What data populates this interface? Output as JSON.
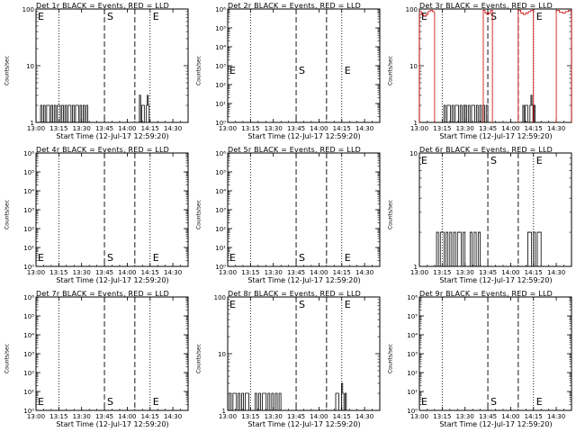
{
  "chart_data": [
    {
      "type": "line",
      "title": "Det 1r BLACK = Events, RED = LLD",
      "xlabel": "Start Time (12-Jul-17 12:59:20)",
      "ylabel": "Counts/sec",
      "scale": "log",
      "xlim": [
        "13:00",
        "14:40"
      ],
      "ylim": [
        1,
        100
      ],
      "x_ticks": [
        "13:00",
        "13:15",
        "13:30",
        "13:45",
        "14:00",
        "14:15",
        "14:30"
      ],
      "y_ticks": [
        "1",
        "10",
        "100"
      ],
      "marker_lines": [
        {
          "time": "13:15",
          "style": "dotted"
        },
        {
          "time": "13:45",
          "style": "dashed",
          "label": "S"
        },
        {
          "time": "14:05",
          "style": "dashed"
        },
        {
          "time": "14:15",
          "style": "dotted",
          "label": "E"
        }
      ],
      "extra_labels": [
        {
          "text": "E",
          "pos": "left"
        }
      ],
      "label_row": "top",
      "series": [
        {
          "color": "#000000",
          "segments": [
            {
              "x0": "13:02",
              "x1": "13:18",
              "values": [
                1,
                2,
                1,
                2,
                1,
                2,
                2,
                1,
                2,
                1,
                2,
                1,
                2,
                2,
                1,
                2
              ]
            },
            {
              "x0": "13:19",
              "x1": "13:35",
              "values": [
                2,
                1,
                2,
                2,
                1,
                2,
                1,
                2,
                2,
                1,
                2,
                1,
                2,
                1,
                2,
                1
              ]
            },
            {
              "x0": "14:08",
              "x1": "14:12",
              "values": [
                3,
                1,
                2,
                2,
                1
              ]
            },
            {
              "x0": "14:12",
              "x1": "14:15",
              "values": [
                1,
                2,
                3,
                2,
                1
              ]
            }
          ]
        }
      ]
    },
    {
      "type": "line",
      "title": "Det 2r BLACK = Events, RED = LLD",
      "xlabel": "Start Time (12-Jul-17 12:59:20)",
      "ylabel": "Counts/sec",
      "scale": "log",
      "xlim": [
        "13:00",
        "14:40"
      ],
      "ylim": [
        1,
        1000000
      ],
      "x_ticks": [
        "13:00",
        "13:15",
        "13:30",
        "13:45",
        "14:00",
        "14:15",
        "14:30"
      ],
      "y_ticks": [
        "10⁰",
        "10¹",
        "10²",
        "10³",
        "10⁴",
        "10⁵",
        "10⁶"
      ],
      "marker_lines": [
        {
          "time": "13:15",
          "style": "dotted"
        },
        {
          "time": "13:45",
          "style": "dashed",
          "label": "S"
        },
        {
          "time": "14:05",
          "style": "dashed"
        },
        {
          "time": "14:15",
          "style": "dotted",
          "label": "E"
        }
      ],
      "extra_labels": [
        {
          "text": "E",
          "pos": "left"
        }
      ],
      "label_row": "mid",
      "series": []
    },
    {
      "type": "line",
      "title": "Det 3r BLACK = Events, RED = LLD",
      "xlabel": "Start Time (12-Jul-17 12:59:20)",
      "ylabel": "Counts/sec",
      "scale": "log",
      "xlim": [
        "13:00",
        "14:40"
      ],
      "ylim": [
        1,
        100
      ],
      "x_ticks": [
        "13:00",
        "13:15",
        "13:30",
        "13:45",
        "14:00",
        "14:15",
        "14:30"
      ],
      "y_ticks": [
        "1",
        "10",
        "100"
      ],
      "marker_lines": [
        {
          "time": "13:15",
          "style": "dotted"
        },
        {
          "time": "13:45",
          "style": "dashed",
          "label": "S"
        },
        {
          "time": "14:05",
          "style": "dashed"
        },
        {
          "time": "14:15",
          "style": "dotted",
          "label": "E"
        }
      ],
      "extra_labels": [
        {
          "text": "E",
          "pos": "left"
        }
      ],
      "label_row": "top",
      "series": [
        {
          "color": "#000000",
          "segments": [
            {
              "x0": "13:15",
              "x1": "13:30",
              "values": [
                1,
                2,
                1,
                2,
                2,
                1,
                2,
                1,
                2,
                2,
                1,
                2,
                1,
                2
              ]
            },
            {
              "x0": "13:30",
              "x1": "13:45",
              "values": [
                2,
                1,
                2,
                1,
                2,
                2,
                1,
                2,
                1,
                2,
                1,
                2,
                1,
                2
              ]
            },
            {
              "x0": "14:08",
              "x1": "14:12",
              "values": [
                2,
                1,
                2,
                2,
                1
              ]
            },
            {
              "x0": "14:12",
              "x1": "14:16",
              "values": [
                1,
                2,
                3,
                2,
                1,
                2
              ]
            }
          ]
        },
        {
          "color": "#cc0000",
          "segments": [
            {
              "x0": "13:00",
              "x1": "13:10",
              "values": [
                90,
                80,
                75,
                80,
                90,
                95,
                90
              ]
            },
            {
              "x0": "13:42",
              "x1": "13:48",
              "values": [
                95,
                85,
                80,
                85,
                95
              ]
            },
            {
              "x0": "14:05",
              "x1": "14:15",
              "values": [
                95,
                85,
                80,
                85,
                90,
                95
              ]
            },
            {
              "x0": "14:30",
              "x1": "14:40",
              "values": [
                95,
                88,
                85,
                90,
                95
              ]
            }
          ]
        }
      ]
    },
    {
      "type": "line",
      "title": "Det 4r BLACK = Events, RED = LLD",
      "xlabel": "Start Time (12-Jul-17 12:59:20)",
      "ylabel": "Counts/sec",
      "scale": "log",
      "xlim": [
        "13:00",
        "14:40"
      ],
      "ylim": [
        1,
        1000000
      ],
      "x_ticks": [
        "13:00",
        "13:15",
        "13:30",
        "13:45",
        "14:00",
        "14:15",
        "14:30"
      ],
      "y_ticks": [
        "10⁰",
        "10¹",
        "10²",
        "10³",
        "10⁴",
        "10⁵",
        "10⁶"
      ],
      "marker_lines": [
        {
          "time": "13:15",
          "style": "dotted"
        },
        {
          "time": "13:45",
          "style": "dashed",
          "label": "S"
        },
        {
          "time": "14:05",
          "style": "dashed"
        },
        {
          "time": "14:15",
          "style": "dotted",
          "label": "E"
        }
      ],
      "extra_labels": [
        {
          "text": "E",
          "pos": "left"
        }
      ],
      "label_row": "bottom",
      "series": []
    },
    {
      "type": "line",
      "title": "Det 5r BLACK = Events, RED = LLD",
      "xlabel": "Start Time (12-Jul-17 12:59:20)",
      "ylabel": "Counts/sec",
      "scale": "log",
      "xlim": [
        "13:00",
        "14:40"
      ],
      "ylim": [
        1,
        1000000
      ],
      "x_ticks": [
        "13:00",
        "13:15",
        "13:30",
        "13:45",
        "14:00",
        "14:15",
        "14:30"
      ],
      "y_ticks": [
        "10⁰",
        "10¹",
        "10²",
        "10³",
        "10⁴",
        "10⁵",
        "10⁶"
      ],
      "marker_lines": [
        {
          "time": "13:15",
          "style": "dotted"
        },
        {
          "time": "13:45",
          "style": "dashed",
          "label": "S"
        },
        {
          "time": "14:05",
          "style": "dashed"
        },
        {
          "time": "14:15",
          "style": "dotted",
          "label": "E"
        }
      ],
      "extra_labels": [
        {
          "text": "E",
          "pos": "left"
        }
      ],
      "label_row": "bottom",
      "series": []
    },
    {
      "type": "line",
      "title": "Det 6r BLACK = Events, RED = LLD",
      "xlabel": "Start Time (12-Jul-17 12:59:20)",
      "ylabel": "Counts/sec",
      "scale": "log",
      "xlim": [
        "13:00",
        "14:40"
      ],
      "ylim": [
        1,
        10
      ],
      "x_ticks": [
        "13:00",
        "13:15",
        "13:30",
        "13:45",
        "14:00",
        "14:15",
        "14:30"
      ],
      "y_ticks": [
        "1",
        "10"
      ],
      "marker_lines": [
        {
          "time": "13:15",
          "style": "dotted"
        },
        {
          "time": "13:45",
          "style": "dashed",
          "label": "S"
        },
        {
          "time": "14:05",
          "style": "dashed"
        },
        {
          "time": "14:15",
          "style": "dotted",
          "label": "E"
        }
      ],
      "extra_labels": [
        {
          "text": "E",
          "pos": "left"
        }
      ],
      "label_row": "top",
      "series": [
        {
          "color": "#000000",
          "segments": [
            {
              "x0": "13:10",
              "x1": "13:20",
              "values": [
                1,
                2,
                1,
                2,
                2,
                1,
                2,
                1
              ]
            },
            {
              "x0": "13:20",
              "x1": "13:30",
              "values": [
                2,
                1,
                2,
                1,
                2,
                2,
                1,
                2
              ]
            },
            {
              "x0": "13:32",
              "x1": "13:40",
              "values": [
                1,
                2,
                1,
                2,
                1,
                2
              ]
            },
            {
              "x0": "14:10",
              "x1": "14:20",
              "values": [
                1,
                2,
                2,
                1,
                2,
                1,
                2,
                2
              ]
            }
          ]
        }
      ]
    },
    {
      "type": "line",
      "title": "Det 7r BLACK = Events, RED = LLD",
      "xlabel": "Start Time (12-Jul-17 12:59:20)",
      "ylabel": "Counts/sec",
      "scale": "log",
      "xlim": [
        "13:00",
        "14:40"
      ],
      "ylim": [
        1,
        1000000
      ],
      "x_ticks": [
        "13:00",
        "13:15",
        "13:30",
        "13:45",
        "14:00",
        "14:15",
        "14:30"
      ],
      "y_ticks": [
        "10⁰",
        "10¹",
        "10²",
        "10³",
        "10⁴",
        "10⁵",
        "10⁶"
      ],
      "marker_lines": [
        {
          "time": "13:15",
          "style": "dotted"
        },
        {
          "time": "13:45",
          "style": "dashed",
          "label": "S"
        },
        {
          "time": "14:05",
          "style": "dashed"
        },
        {
          "time": "14:15",
          "style": "dotted",
          "label": "E"
        }
      ],
      "extra_labels": [
        {
          "text": "E",
          "pos": "left"
        }
      ],
      "label_row": "bottom",
      "series": []
    },
    {
      "type": "line",
      "title": "Det 8r BLACK = Events, RED = LLD",
      "xlabel": "Start Time (12-Jul-17 12:59:20)",
      "ylabel": "Counts/sec",
      "scale": "log",
      "xlim": [
        "13:00",
        "14:40"
      ],
      "ylim": [
        1,
        100
      ],
      "x_ticks": [
        "13:00",
        "13:15",
        "13:30",
        "13:45",
        "14:00",
        "14:15",
        "14:30"
      ],
      "y_ticks": [
        "1",
        "10",
        "100"
      ],
      "marker_lines": [
        {
          "time": "13:15",
          "style": "dotted"
        },
        {
          "time": "13:45",
          "style": "dashed",
          "label": "S"
        },
        {
          "time": "14:05",
          "style": "dashed"
        },
        {
          "time": "14:15",
          "style": "dotted",
          "label": "E"
        }
      ],
      "extra_labels": [
        {
          "text": "E",
          "pos": "left"
        }
      ],
      "label_row": "top",
      "series": [
        {
          "color": "#000000",
          "segments": [
            {
              "x0": "13:00",
              "x1": "13:15",
              "values": [
                1,
                2,
                1,
                2,
                2,
                1,
                2,
                1,
                2,
                1,
                2,
                2,
                1
              ]
            },
            {
              "x0": "13:18",
              "x1": "13:35",
              "values": [
                2,
                1,
                2,
                1,
                2,
                2,
                1,
                2,
                1,
                2,
                1,
                2,
                1,
                2
              ]
            },
            {
              "x0": "14:10",
              "x1": "14:14",
              "values": [
                1,
                2,
                2,
                1
              ]
            },
            {
              "x0": "14:14",
              "x1": "14:18",
              "values": [
                1,
                3,
                2,
                1,
                2
              ]
            }
          ]
        }
      ]
    },
    {
      "type": "line",
      "title": "Det 9r BLACK = Events, RED = LLD",
      "xlabel": "Start Time (12-Jul-17 12:59:20)",
      "ylabel": "Counts/sec",
      "scale": "log",
      "xlim": [
        "13:00",
        "14:40"
      ],
      "ylim": [
        1,
        1000000
      ],
      "x_ticks": [
        "13:00",
        "13:15",
        "13:30",
        "13:45",
        "14:00",
        "14:15",
        "14:30"
      ],
      "y_ticks": [
        "10⁰",
        "10¹",
        "10²",
        "10³",
        "10⁴",
        "10⁵",
        "10⁶"
      ],
      "marker_lines": [
        {
          "time": "13:15",
          "style": "dotted"
        },
        {
          "time": "13:45",
          "style": "dashed",
          "label": "S"
        },
        {
          "time": "14:05",
          "style": "dashed"
        },
        {
          "time": "14:15",
          "style": "dotted",
          "label": "E"
        }
      ],
      "extra_labels": [
        {
          "text": "E",
          "pos": "left"
        }
      ],
      "label_row": "bottom",
      "series": []
    }
  ]
}
